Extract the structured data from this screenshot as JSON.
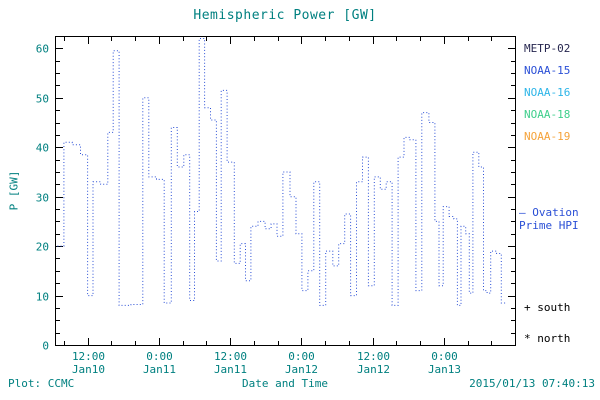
{
  "title": "Hemispheric Power [GW]",
  "colors": {
    "text": "#008080",
    "axis": "#000000",
    "line": "#2a4fd6",
    "background": "#ffffff"
  },
  "legend": {
    "satellites": [
      {
        "label": "METP-02",
        "color": "#26264f"
      },
      {
        "label": "NOAA-15",
        "color": "#2a4fd6"
      },
      {
        "label": "NOAA-16",
        "color": "#2db5e8"
      },
      {
        "label": "NOAA-18",
        "color": "#3fcf8c"
      },
      {
        "label": "NOAA-19",
        "color": "#f5a33a"
      }
    ],
    "ovation": {
      "key": "–",
      "line1": "Ovation",
      "line2": "Prime HPI",
      "color": "#2a4fd6"
    },
    "south": "+ south",
    "north": "* north"
  },
  "footer": {
    "credit": "Plot: CCMC",
    "timestamp": "2015/01/13 07:40:13"
  },
  "chart_data": {
    "type": "line",
    "style": "dotted-step",
    "title": "Hemispheric Power [GW]",
    "xlabel": "Date and Time",
    "ylabel": "P [GW]",
    "xlim_hours_from_jan10_0000": [
      6.5,
      84
    ],
    "ylim": [
      0,
      62.5
    ],
    "y_ticks": [
      0,
      10,
      20,
      30,
      40,
      50,
      60
    ],
    "y_minor_step": 2.5,
    "x_minor_step_hours": 4,
    "x_ticks": [
      {
        "hour": 12,
        "time": "12:00",
        "date": "Jan10"
      },
      {
        "hour": 24,
        "time": "0:00",
        "date": "Jan11"
      },
      {
        "hour": 36,
        "time": "12:00",
        "date": "Jan11"
      },
      {
        "hour": 48,
        "time": "0:00",
        "date": "Jan12"
      },
      {
        "hour": 60,
        "time": "12:00",
        "date": "Jan12"
      },
      {
        "hour": 72,
        "time": "0:00",
        "date": "Jan13"
      }
    ],
    "legend_position": "right",
    "grid": false,
    "series": [
      {
        "name": "Ovation Prime HPI",
        "color": "#2a4fd6",
        "units": "GW",
        "end_hour": 82.5,
        "points_time_hours_value_gw": [
          [
            6.9,
            20
          ],
          [
            8.0,
            41
          ],
          [
            9.4,
            40.5
          ],
          [
            10.8,
            38.5
          ],
          [
            12.0,
            10
          ],
          [
            12.9,
            33
          ],
          [
            14.2,
            32.5
          ],
          [
            15.4,
            43
          ],
          [
            16.3,
            59.5
          ],
          [
            17.3,
            8
          ],
          [
            19.3,
            8.2
          ],
          [
            21.3,
            50
          ],
          [
            22.3,
            34
          ],
          [
            23.6,
            33.5
          ],
          [
            24.9,
            8.5
          ],
          [
            26.1,
            44
          ],
          [
            27.1,
            36
          ],
          [
            28.2,
            38.5
          ],
          [
            29.2,
            9
          ],
          [
            30.0,
            27
          ],
          [
            30.8,
            62
          ],
          [
            31.7,
            48
          ],
          [
            32.7,
            45.5
          ],
          [
            33.7,
            17
          ],
          [
            34.5,
            51.5
          ],
          [
            35.5,
            37
          ],
          [
            36.7,
            16.5
          ],
          [
            37.7,
            20.5
          ],
          [
            38.6,
            13
          ],
          [
            39.5,
            24
          ],
          [
            40.7,
            25
          ],
          [
            41.9,
            23.5
          ],
          [
            42.9,
            24.5
          ],
          [
            43.9,
            22
          ],
          [
            44.9,
            35
          ],
          [
            46.1,
            30
          ],
          [
            47.1,
            22.5
          ],
          [
            48.1,
            11
          ],
          [
            49.1,
            15
          ],
          [
            50.1,
            33
          ],
          [
            51.1,
            8
          ],
          [
            52.1,
            19
          ],
          [
            53.3,
            16
          ],
          [
            54.3,
            20.5
          ],
          [
            55.3,
            26.5
          ],
          [
            56.3,
            10
          ],
          [
            57.3,
            33
          ],
          [
            58.3,
            38
          ],
          [
            59.3,
            12
          ],
          [
            60.3,
            34
          ],
          [
            61.3,
            31.5
          ],
          [
            62.3,
            33
          ],
          [
            63.3,
            8
          ],
          [
            64.3,
            38
          ],
          [
            65.3,
            42
          ],
          [
            66.3,
            41.5
          ],
          [
            67.3,
            11
          ],
          [
            68.3,
            47
          ],
          [
            69.5,
            45
          ],
          [
            70.5,
            25
          ],
          [
            71.2,
            12
          ],
          [
            71.9,
            28
          ],
          [
            72.9,
            26
          ],
          [
            73.7,
            25.5
          ],
          [
            74.3,
            8
          ],
          [
            74.9,
            24
          ],
          [
            75.7,
            22.5
          ],
          [
            76.3,
            10.5
          ],
          [
            76.9,
            39
          ],
          [
            77.9,
            36
          ],
          [
            78.7,
            11
          ],
          [
            79.3,
            10.5
          ],
          [
            79.9,
            19
          ],
          [
            80.9,
            18.5
          ],
          [
            81.7,
            8.5
          ]
        ]
      }
    ]
  }
}
